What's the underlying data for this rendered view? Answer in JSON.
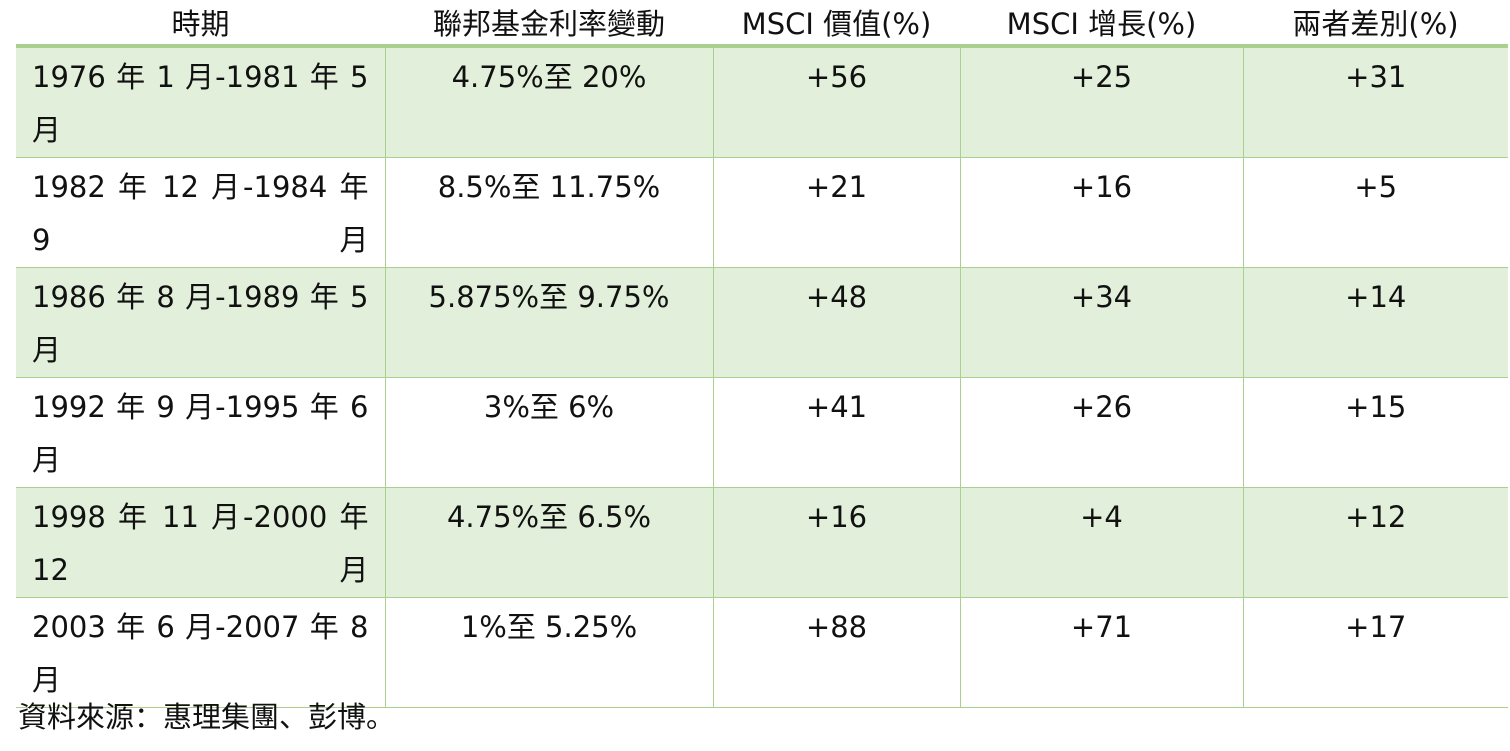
{
  "table": {
    "header": [
      "時期",
      "聯邦基金利率變動",
      "MSCI 價值(%)",
      "MSCI 增長(%)",
      "兩者差別(%)"
    ],
    "rows": [
      [
        "1976 年 1 月-1981 年 5 月",
        "4.75%至 20%",
        "+56",
        "+25",
        "+31"
      ],
      [
        "1982 年 12 月-1984 年 9 月",
        "8.5%至 11.75%",
        "+21",
        "+16",
        "+5"
      ],
      [
        "1986 年 8 月-1989 年 5 月",
        "5.875%至 9.75%",
        "+48",
        "+34",
        "+14"
      ],
      [
        "1992 年 9 月-1995 年 6 月",
        "3%至 6%",
        "+41",
        "+26",
        "+15"
      ],
      [
        "1998 年 11 月-2000 年 12 月",
        "4.75%至 6.5%",
        "+16",
        "+4",
        "+12"
      ],
      [
        "2003 年 6 月-2007 年 8 月",
        "1%至 5.25%",
        "+88",
        "+71",
        "+17"
      ]
    ]
  },
  "source": "資料來源：惠理集團、彭博。"
}
